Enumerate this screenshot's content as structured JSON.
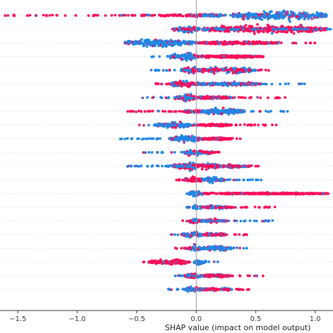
{
  "chart_data": {
    "type": "scatter",
    "subtype": "shap-beeswarm-summary",
    "title": "",
    "xlabel": "SHAP value (impact on model output)",
    "ylabel": "",
    "xlim": [
      -1.65,
      1.15
    ],
    "x_ticks": [
      -1.5,
      -1.0,
      -0.5,
      0.0,
      0.5,
      1.0
    ],
    "x_tick_labels": [
      "−1.5",
      "−1.0",
      "−0.5",
      "0.0",
      "0.5",
      "1.0"
    ],
    "grid": false,
    "legend": "none",
    "colors": {
      "high_feature_value": "#ff0d57",
      "low_feature_value": "#1e88e5",
      "mid_feature_value": "#9b3fa8",
      "zero_line": "#999999",
      "row_divider": "#e3e3e3"
    },
    "features": [
      {
        "neg_reach": -1.62,
        "pos_reach": 1.15,
        "dense": [
          [
            0.3,
            1.1,
            11,
            0.1
          ],
          [
            -0.08,
            0.2,
            4,
            0.5
          ]
        ],
        "low_side": "pos"
      },
      {
        "neg_reach": -0.2,
        "pos_reach": 1.15,
        "dense": [
          [
            0.05,
            1.1,
            9,
            0.9
          ],
          [
            -0.2,
            0.03,
            7,
            0.3
          ]
        ],
        "low_side": "pos"
      },
      {
        "neg_reach": -0.63,
        "pos_reach": 1.03,
        "dense": [
          [
            -0.6,
            0.0,
            9,
            0.05
          ],
          [
            0.0,
            0.7,
            4,
            0.8
          ]
        ],
        "low_side": "neg"
      },
      {
        "neg_reach": -0.38,
        "pos_reach": 0.62,
        "dense": [
          [
            -0.22,
            0.02,
            9,
            0.1
          ],
          [
            0.0,
            0.55,
            3,
            0.85
          ]
        ],
        "low_side": "neg"
      },
      {
        "neg_reach": -0.38,
        "pos_reach": 0.62,
        "dense": [
          [
            -0.12,
            0.05,
            9,
            0.6
          ],
          [
            0.0,
            0.5,
            7,
            0.4
          ]
        ],
        "low_side": "neg"
      },
      {
        "neg_reach": -0.42,
        "pos_reach": 0.92,
        "dense": [
          [
            -0.22,
            0.02,
            8,
            0.5
          ],
          [
            0.0,
            0.55,
            4,
            0.3
          ]
        ],
        "low_side": "pos"
      },
      {
        "neg_reach": -0.48,
        "pos_reach": 0.77,
        "dense": [
          [
            -0.18,
            0.0,
            9,
            0.5
          ],
          [
            0.0,
            0.3,
            4,
            0.5
          ]
        ],
        "low_side": "neg"
      },
      {
        "neg_reach": -0.58,
        "pos_reach": 0.77,
        "dense": [
          [
            -0.1,
            0.05,
            5,
            0.6
          ],
          [
            0.05,
            0.4,
            7,
            0.1
          ]
        ],
        "low_side": "pos"
      },
      {
        "neg_reach": -0.5,
        "pos_reach": 0.77,
        "dense": [
          [
            -0.35,
            0.0,
            6,
            0.1
          ],
          [
            0.0,
            0.3,
            3,
            0.9
          ]
        ],
        "low_side": "neg"
      },
      {
        "neg_reach": -0.68,
        "pos_reach": 0.38,
        "dense": [
          [
            -0.22,
            0.05,
            8,
            0.1
          ],
          [
            0.05,
            0.3,
            3,
            0.9
          ]
        ],
        "low_side": "neg"
      },
      {
        "neg_reach": -0.45,
        "pos_reach": 0.2,
        "dense": [
          [
            -0.1,
            0.05,
            7,
            0.3
          ],
          [
            0.05,
            0.15,
            3,
            0.5
          ]
        ],
        "low_side": "neg"
      },
      {
        "neg_reach": -0.68,
        "pos_reach": 0.55,
        "dense": [
          [
            -0.2,
            0.2,
            9,
            0.5
          ],
          [
            0.2,
            0.45,
            4,
            0.3
          ]
        ],
        "low_side": "neg"
      },
      {
        "neg_reach": -0.18,
        "pos_reach": 0.55,
        "dense": [
          [
            -0.1,
            0.05,
            6,
            0.9
          ],
          [
            0.05,
            0.25,
            6,
            0.1
          ]
        ],
        "low_side": "pos"
      },
      {
        "neg_reach": -0.08,
        "pos_reach": 1.15,
        "dense": [
          [
            -0.06,
            0.05,
            7,
            0.05
          ],
          [
            0.2,
            1.1,
            2,
            0.95
          ]
        ],
        "low_side": "neg"
      },
      {
        "neg_reach": -0.08,
        "pos_reach": 0.68,
        "dense": [
          [
            -0.03,
            0.05,
            5,
            0.1
          ],
          [
            0.05,
            0.3,
            4,
            0.2
          ]
        ],
        "low_side": "neg"
      },
      {
        "neg_reach": -0.12,
        "pos_reach": 0.68,
        "dense": [
          [
            -0.06,
            0.05,
            6,
            0.3
          ],
          [
            0.05,
            0.25,
            4,
            0.4
          ]
        ],
        "low_side": "pos"
      },
      {
        "neg_reach": -0.22,
        "pos_reach": 0.45,
        "dense": [
          [
            -0.12,
            0.05,
            7,
            0.2
          ],
          [
            0.05,
            0.25,
            4,
            0.4
          ]
        ],
        "low_side": "neg"
      },
      {
        "neg_reach": -0.22,
        "pos_reach": 0.45,
        "dense": [
          [
            -0.08,
            0.05,
            7,
            0.3
          ],
          [
            0.05,
            0.3,
            5,
            0.1
          ]
        ],
        "low_side": "pos"
      },
      {
        "neg_reach": -0.45,
        "pos_reach": 0.2,
        "dense": [
          [
            -0.4,
            -0.05,
            6,
            0.9
          ],
          [
            -0.02,
            0.05,
            7,
            0.1
          ]
        ],
        "low_side": "pos"
      },
      {
        "neg_reach": -0.25,
        "pos_reach": 0.58,
        "dense": [
          [
            -0.1,
            0.05,
            5,
            0.4
          ],
          [
            0.05,
            0.3,
            4,
            0.6
          ]
        ],
        "low_side": "neg"
      },
      {
        "neg_reach": -0.25,
        "pos_reach": 0.45,
        "dense": [
          [
            -0.1,
            0.05,
            6,
            0.3
          ],
          [
            0.05,
            0.3,
            4,
            0.5
          ]
        ],
        "low_side": "neg"
      }
    ]
  }
}
